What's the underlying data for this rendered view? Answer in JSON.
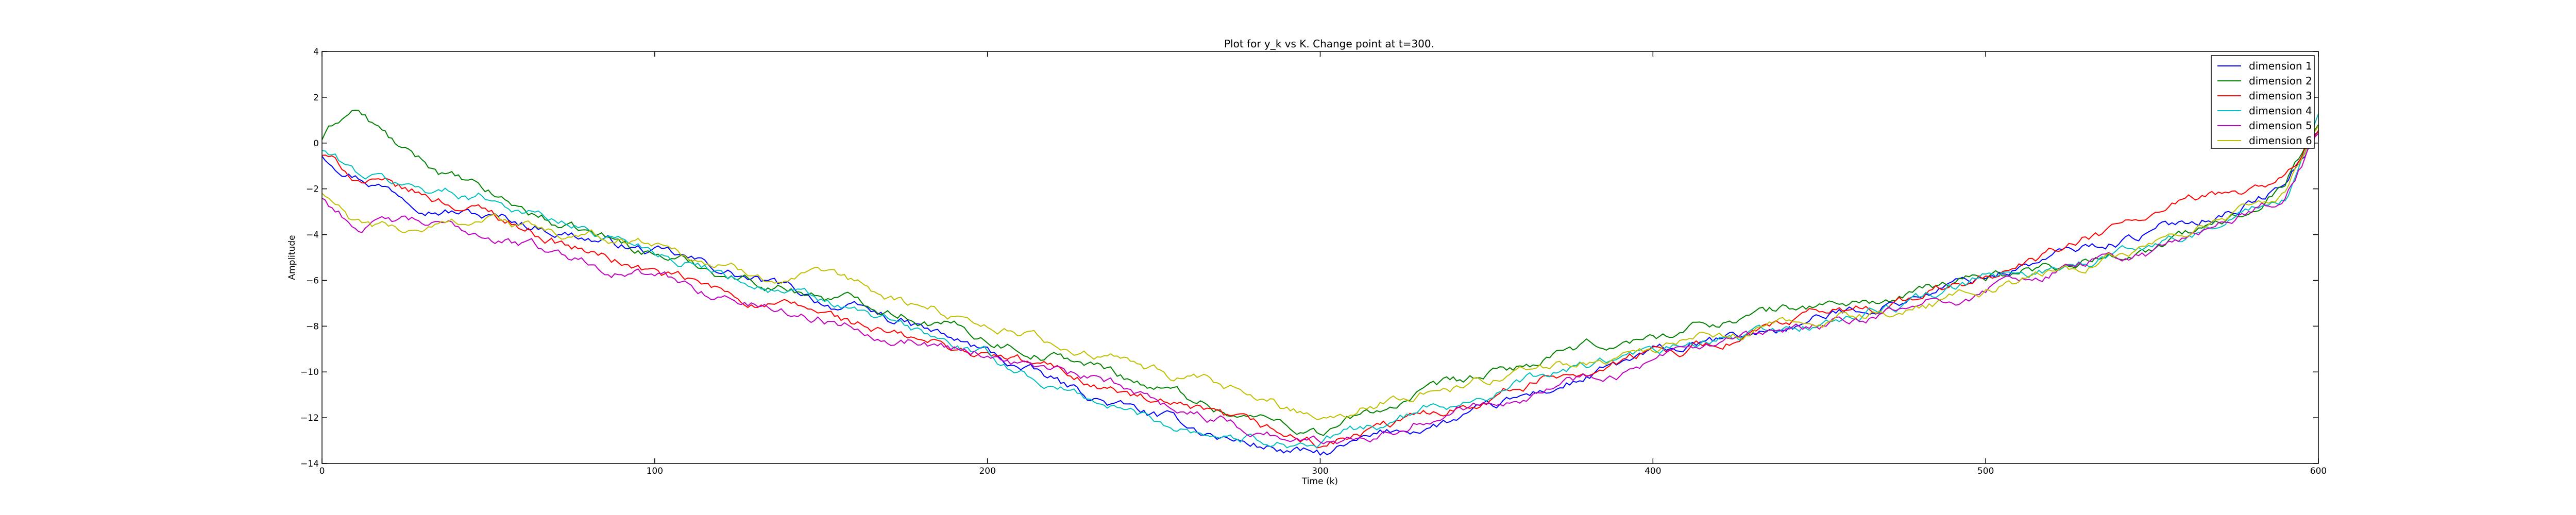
{
  "chart_data": {
    "type": "line",
    "title": "Plot for y_k vs K.  Change point at t=300.",
    "xlabel": "Time (k)",
    "ylabel": "Amplitude",
    "xlim": [
      0,
      600
    ],
    "ylim": [
      -14,
      4
    ],
    "xticks": [
      0,
      100,
      200,
      300,
      400,
      500,
      600
    ],
    "yticks": [
      4,
      2,
      0,
      -2,
      -4,
      -6,
      -8,
      -10,
      -12,
      -14
    ],
    "grid": false,
    "legend_position": "top-right",
    "series": [
      {
        "name": "dimension 1",
        "color": "#0000ff",
        "x": [
          0,
          10,
          25,
          50,
          75,
          100,
          125,
          150,
          175,
          200,
          225,
          250,
          275,
          300,
          325,
          350,
          375,
          400,
          425,
          450,
          475,
          500,
          525,
          550,
          575,
          590,
          600
        ],
        "y": [
          -0.5,
          -1.2,
          -2.2,
          -3.2,
          -3.9,
          -4.8,
          -5.8,
          -6.9,
          -7.9,
          -9.2,
          -10.8,
          -12.0,
          -13.0,
          -13.7,
          -12.6,
          -11.8,
          -10.5,
          -9.3,
          -8.6,
          -7.7,
          -6.8,
          -5.8,
          -4.8,
          -3.9,
          -2.8,
          -1.9,
          0.5
        ]
      },
      {
        "name": "dimension 2",
        "color": "#008000",
        "x": [
          0,
          5,
          10,
          25,
          50,
          75,
          100,
          125,
          150,
          175,
          200,
          225,
          250,
          275,
          300,
          325,
          350,
          375,
          400,
          425,
          450,
          475,
          500,
          525,
          550,
          575,
          590,
          600
        ],
        "y": [
          0.2,
          1.0,
          1.5,
          -0.5,
          -2.3,
          -3.8,
          -4.8,
          -5.8,
          -6.6,
          -7.3,
          -8.5,
          -9.4,
          -10.6,
          -11.8,
          -12.6,
          -11.3,
          -10.3,
          -9.2,
          -8.5,
          -7.6,
          -7.1,
          -6.8,
          -5.8,
          -5.2,
          -4.5,
          -3.4,
          -1.5,
          1.0
        ]
      },
      {
        "name": "dimension 3",
        "color": "#ff0000",
        "x": [
          0,
          10,
          25,
          50,
          75,
          100,
          125,
          150,
          175,
          200,
          225,
          250,
          275,
          300,
          325,
          350,
          375,
          400,
          425,
          450,
          475,
          500,
          525,
          550,
          575,
          590,
          600
        ],
        "y": [
          -0.5,
          -1.5,
          -2.2,
          -3.0,
          -4.5,
          -5.7,
          -6.8,
          -7.5,
          -8.6,
          -9.3,
          -10.1,
          -11.4,
          -12.4,
          -13.2,
          -12.3,
          -11.0,
          -10.0,
          -9.2,
          -8.5,
          -7.6,
          -6.9,
          -5.9,
          -4.6,
          -3.2,
          -2.2,
          -1.5,
          0.5
        ]
      },
      {
        "name": "dimension 4",
        "color": "#00bfbf",
        "x": [
          0,
          10,
          25,
          50,
          75,
          100,
          125,
          150,
          175,
          200,
          225,
          250,
          275,
          300,
          325,
          350,
          375,
          400,
          425,
          450,
          475,
          500,
          525,
          550,
          575,
          590,
          600
        ],
        "y": [
          -0.3,
          -1.3,
          -1.9,
          -2.3,
          -3.6,
          -4.6,
          -5.8,
          -7.0,
          -8.1,
          -9.4,
          -10.9,
          -12.1,
          -12.8,
          -13.1,
          -12.0,
          -10.9,
          -9.9,
          -9.2,
          -8.6,
          -7.9,
          -7.1,
          -6.0,
          -5.3,
          -4.5,
          -3.1,
          -2.6,
          0.8
        ]
      },
      {
        "name": "dimension 5",
        "color": "#bf00bf",
        "x": [
          0,
          10,
          25,
          50,
          75,
          100,
          125,
          150,
          175,
          200,
          225,
          250,
          275,
          300,
          325,
          350,
          375,
          400,
          425,
          450,
          475,
          500,
          525,
          550,
          575,
          590,
          600
        ],
        "y": [
          -2.4,
          -3.6,
          -3.5,
          -4.0,
          -5.0,
          -5.8,
          -6.9,
          -7.6,
          -8.4,
          -9.1,
          -10.2,
          -11.1,
          -12.3,
          -13.1,
          -12.2,
          -11.1,
          -10.3,
          -9.6,
          -8.9,
          -8.1,
          -7.4,
          -6.4,
          -5.4,
          -4.8,
          -3.3,
          -2.4,
          0.5
        ]
      },
      {
        "name": "dimension 6",
        "color": "#bfbf00",
        "x": [
          0,
          10,
          25,
          50,
          75,
          100,
          125,
          150,
          175,
          200,
          225,
          250,
          275,
          300,
          325,
          350,
          375,
          400,
          425,
          450,
          475,
          500,
          525,
          550,
          575,
          590,
          600
        ],
        "y": [
          -2.2,
          -3.6,
          -3.9,
          -3.2,
          -4.2,
          -4.3,
          -5.6,
          -6.0,
          -7.0,
          -7.8,
          -9.0,
          -10.0,
          -11.0,
          -11.9,
          -11.0,
          -10.3,
          -9.6,
          -9.0,
          -8.4,
          -7.7,
          -7.4,
          -6.4,
          -5.6,
          -4.4,
          -3.2,
          -2.2,
          0.8
        ]
      }
    ]
  }
}
